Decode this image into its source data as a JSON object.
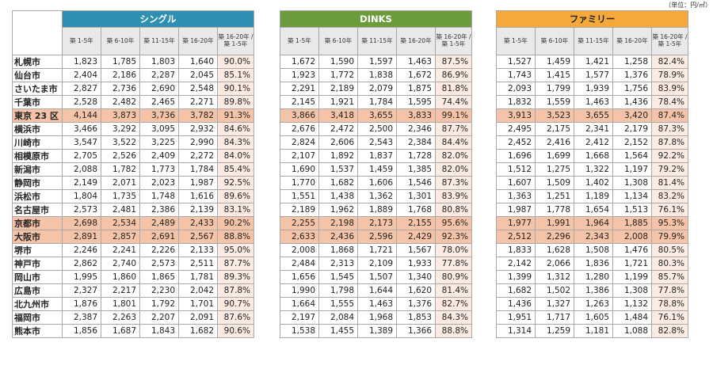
{
  "unit_label": "（単位：円/㎡）",
  "colors": {
    "single": "#2f8fb0",
    "dinks": "#6a9c3b",
    "family": "#f4a93a",
    "highlight": "#f5c3a7",
    "pct_bg": "#fcebe2",
    "header_bg": "#e9e9e9"
  },
  "column_headers": [
    "築 1-5年",
    "築 6-10年",
    "築 11-15年",
    "築 16-20年",
    "築 16-20年 / 築 1-5年"
  ],
  "highlight_rows": [
    5,
    13,
    14
  ],
  "groups": [
    {
      "title": "シングル",
      "rows": [
        [
          "1,823",
          "1,785",
          "1,803",
          "1,640",
          "90.0%"
        ],
        [
          "2,404",
          "2,186",
          "2,287",
          "2,045",
          "85.1%"
        ],
        [
          "2,827",
          "2,736",
          "2,690",
          "2,548",
          "90.1%"
        ],
        [
          "2,528",
          "2,482",
          "2,465",
          "2,271",
          "89.8%"
        ],
        [
          "4,144",
          "3,873",
          "3,736",
          "3,782",
          "91.3%"
        ],
        [
          "3,466",
          "3,292",
          "3,095",
          "2,932",
          "84.6%"
        ],
        [
          "3,547",
          "3,522",
          "3,225",
          "2,990",
          "84.3%"
        ],
        [
          "2,705",
          "2,526",
          "2,409",
          "2,272",
          "84.0%"
        ],
        [
          "2,088",
          "1,782",
          "1,773",
          "1,784",
          "85.4%"
        ],
        [
          "2,149",
          "2,071",
          "2,023",
          "1,987",
          "92.5%"
        ],
        [
          "1,804",
          "1,735",
          "1,748",
          "1,616",
          "89.6%"
        ],
        [
          "2,573",
          "2,481",
          "2,386",
          "2,139",
          "83.1%"
        ],
        [
          "2,698",
          "2,534",
          "2,489",
          "2,433",
          "90.2%"
        ],
        [
          "2,891",
          "2,857",
          "2,691",
          "2,567",
          "88.8%"
        ],
        [
          "2,246",
          "2,241",
          "2,226",
          "2,133",
          "95.0%"
        ],
        [
          "2,862",
          "2,740",
          "2,573",
          "2,511",
          "87.7%"
        ],
        [
          "1,995",
          "1,860",
          "1,865",
          "1,781",
          "89.3%"
        ],
        [
          "2,327",
          "2,217",
          "2,230",
          "2,042",
          "87.8%"
        ],
        [
          "1,876",
          "1,801",
          "1,792",
          "1,701",
          "90.7%"
        ],
        [
          "2,387",
          "2,263",
          "2,207",
          "2,091",
          "87.6%"
        ],
        [
          "1,856",
          "1,687",
          "1,843",
          "1,682",
          "90.6%"
        ]
      ]
    },
    {
      "title": "DINKS",
      "rows": [
        [
          "1,672",
          "1,590",
          "1,597",
          "1,463",
          "87.5%"
        ],
        [
          "1,923",
          "1,772",
          "1,838",
          "1,672",
          "86.9%"
        ],
        [
          "2,291",
          "2,189",
          "2,079",
          "1,875",
          "81.8%"
        ],
        [
          "2,145",
          "1,921",
          "1,784",
          "1,595",
          "74.4%"
        ],
        [
          "3,866",
          "3,418",
          "3,655",
          "3,833",
          "99.1%"
        ],
        [
          "2,676",
          "2,472",
          "2,500",
          "2,346",
          "87.7%"
        ],
        [
          "2,824",
          "2,606",
          "2,543",
          "2,384",
          "84.4%"
        ],
        [
          "2,107",
          "1,892",
          "1,837",
          "1,728",
          "82.0%"
        ],
        [
          "1,690",
          "1,537",
          "1,459",
          "1,385",
          "82.0%"
        ],
        [
          "1,770",
          "1,682",
          "1,606",
          "1,546",
          "87.3%"
        ],
        [
          "1,551",
          "1,438",
          "1,362",
          "1,301",
          "83.9%"
        ],
        [
          "2,189",
          "1,962",
          "1,889",
          "1,768",
          "80.8%"
        ],
        [
          "2,255",
          "2,198",
          "2,173",
          "2,155",
          "95.6%"
        ],
        [
          "2,633",
          "2,436",
          "2,596",
          "2,429",
          "92.3%"
        ],
        [
          "2,008",
          "1,868",
          "1,721",
          "1,567",
          "78.0%"
        ],
        [
          "2,484",
          "2,313",
          "2,109",
          "1,933",
          "77.8%"
        ],
        [
          "1,656",
          "1,545",
          "1,507",
          "1,340",
          "80.9%"
        ],
        [
          "1,990",
          "1,798",
          "1,644",
          "1,620",
          "81.4%"
        ],
        [
          "1,664",
          "1,555",
          "1,463",
          "1,376",
          "82.7%"
        ],
        [
          "2,197",
          "2,084",
          "1,968",
          "1,853",
          "84.3%"
        ],
        [
          "1,538",
          "1,455",
          "1,389",
          "1,366",
          "88.8%"
        ]
      ]
    },
    {
      "title": "ファミリー",
      "rows": [
        [
          "1,527",
          "1,459",
          "1,421",
          "1,258",
          "82.4%"
        ],
        [
          "1,743",
          "1,415",
          "1,577",
          "1,376",
          "78.9%"
        ],
        [
          "2,093",
          "1,799",
          "1,939",
          "1,756",
          "83.9%"
        ],
        [
          "1,832",
          "1,559",
          "1,463",
          "1,436",
          "78.4%"
        ],
        [
          "3,913",
          "3,523",
          "3,655",
          "3,420",
          "87.4%"
        ],
        [
          "2,495",
          "2,175",
          "2,341",
          "2,179",
          "87.3%"
        ],
        [
          "2,452",
          "2,416",
          "2,412",
          "2,152",
          "87.8%"
        ],
        [
          "1,696",
          "1,699",
          "1,668",
          "1,564",
          "92.2%"
        ],
        [
          "1,512",
          "1,275",
          "1,322",
          "1,197",
          "79.2%"
        ],
        [
          "1,607",
          "1,509",
          "1,402",
          "1,308",
          "81.4%"
        ],
        [
          "1,363",
          "1,251",
          "1,189",
          "1,134",
          "83.2%"
        ],
        [
          "1,987",
          "1,778",
          "1,654",
          "1,513",
          "76.1%"
        ],
        [
          "1,977",
          "1,991",
          "1,964",
          "1,885",
          "95.3%"
        ],
        [
          "2,512",
          "2,296",
          "2,343",
          "2,008",
          "79.9%"
        ],
        [
          "1,833",
          "1,628",
          "1,508",
          "1,476",
          "80.5%"
        ],
        [
          "2,142",
          "2,066",
          "1,836",
          "1,721",
          "80.3%"
        ],
        [
          "1,399",
          "1,312",
          "1,280",
          "1,199",
          "85.7%"
        ],
        [
          "1,682",
          "1,502",
          "1,386",
          "1,308",
          "77.8%"
        ],
        [
          "1,436",
          "1,327",
          "1,263",
          "1,132",
          "78.8%"
        ],
        [
          "1,951",
          "1,717",
          "1,605",
          "1,484",
          "76.1%"
        ],
        [
          "1,314",
          "1,259",
          "1,181",
          "1,088",
          "82.8%"
        ]
      ]
    }
  ],
  "cities": [
    "札幌市",
    "仙台市",
    "さいたま市",
    "千葉市",
    "東京 23 区",
    "横浜市",
    "川崎市",
    "相模原市",
    "新潟市",
    "静岡市",
    "浜松市",
    "名古屋市",
    "京都市",
    "大阪市",
    "堺市",
    "神戸市",
    "岡山市",
    "広島市",
    "北九州市",
    "福岡市",
    "熊本市"
  ]
}
